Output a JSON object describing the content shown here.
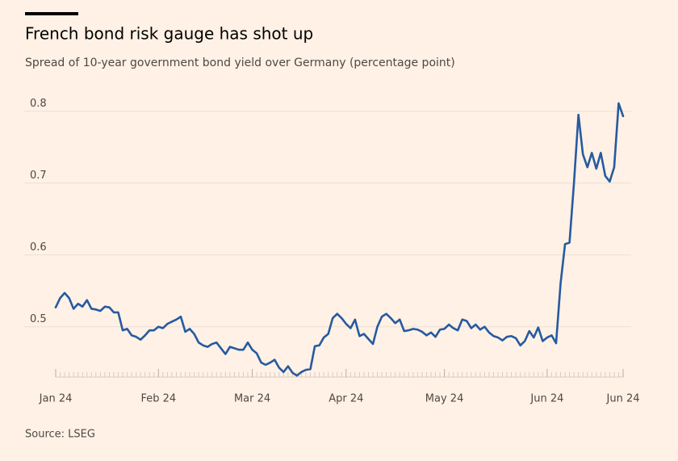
{
  "chart_data": {
    "type": "line",
    "title": "French bond risk gauge has shot up",
    "subtitle": "Spread of 10-year government bond yield over Germany (percentage point)",
    "source": "Source: LSEG",
    "categories": [
      "Jan 24",
      null,
      null,
      null,
      null,
      null,
      null,
      null,
      null,
      null,
      null,
      null,
      null,
      null,
      null,
      null,
      null,
      null,
      null,
      null,
      null,
      null,
      null,
      "Feb 24",
      null,
      null,
      null,
      null,
      null,
      null,
      null,
      null,
      null,
      null,
      null,
      null,
      null,
      null,
      null,
      null,
      null,
      null,
      null,
      null,
      "Mar 24",
      null,
      null,
      null,
      null,
      null,
      null,
      null,
      null,
      null,
      null,
      null,
      null,
      null,
      null,
      null,
      null,
      null,
      null,
      null,
      null,
      "Apr 24",
      null,
      null,
      null,
      null,
      null,
      null,
      null,
      null,
      null,
      null,
      null,
      null,
      null,
      null,
      null,
      null,
      null,
      null,
      null,
      null,
      null,
      "May 24",
      null,
      null,
      null,
      null,
      null,
      null,
      null,
      null,
      null,
      null,
      null,
      null,
      null,
      null,
      null,
      null,
      null,
      null,
      null,
      null,
      null,
      null,
      "Jun 24",
      null,
      null,
      null,
      null,
      null,
      null,
      null,
      null,
      null,
      null,
      null,
      null,
      null,
      null,
      null,
      null,
      "Jun 24"
    ],
    "values": [
      0.527,
      0.54,
      0.547,
      0.54,
      0.525,
      0.532,
      0.528,
      0.537,
      0.525,
      0.524,
      0.522,
      0.528,
      0.527,
      0.52,
      0.52,
      0.495,
      0.497,
      0.488,
      0.486,
      0.482,
      0.488,
      0.495,
      0.495,
      0.5,
      0.498,
      0.504,
      0.507,
      0.51,
      0.514,
      0.493,
      0.497,
      0.49,
      0.478,
      0.474,
      0.472,
      0.476,
      0.478,
      0.47,
      0.462,
      0.472,
      0.47,
      0.468,
      0.468,
      0.478,
      0.468,
      0.463,
      0.45,
      0.447,
      0.45,
      0.454,
      0.443,
      0.437,
      0.445,
      0.436,
      0.432,
      0.437,
      0.44,
      0.441,
      0.473,
      0.474,
      0.485,
      0.49,
      0.512,
      0.518,
      0.512,
      0.504,
      0.498,
      0.51,
      0.487,
      0.49,
      0.483,
      0.476,
      0.5,
      0.514,
      0.518,
      0.512,
      0.505,
      0.51,
      0.494,
      0.495,
      0.497,
      0.496,
      0.493,
      0.488,
      0.492,
      0.486,
      0.496,
      0.497,
      0.503,
      0.498,
      0.495,
      0.51,
      0.508,
      0.498,
      0.503,
      0.496,
      0.5,
      0.492,
      0.487,
      0.485,
      0.481,
      0.486,
      0.487,
      0.484,
      0.474,
      0.48,
      0.494,
      0.485,
      0.499,
      0.48,
      0.485,
      0.488,
      0.477,
      0.56,
      0.615,
      0.617,
      0.7,
      0.795,
      0.74,
      0.722,
      0.742,
      0.72,
      0.742,
      0.71,
      0.702,
      0.722,
      0.811,
      0.793
    ],
    "color": "#265aa0",
    "ylim": [
      0.43,
      0.83
    ],
    "yticks": [
      0.5,
      0.6,
      0.7,
      0.8
    ],
    "grid": true
  }
}
